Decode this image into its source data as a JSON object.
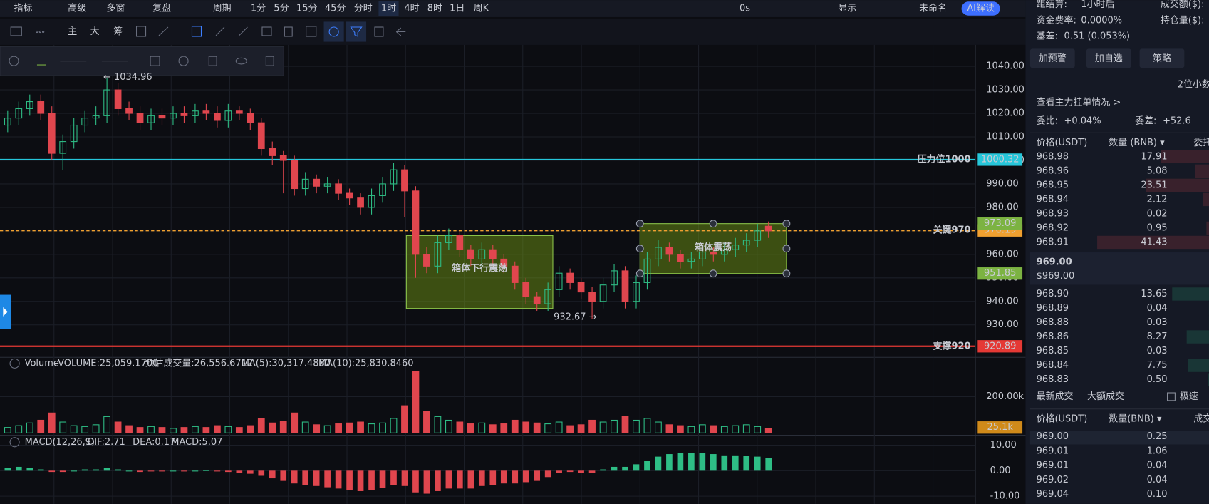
{
  "toolbar": {
    "items": [
      "指标",
      "高级",
      "多窗",
      "复盘",
      "周期",
      "1分",
      "5分",
      "15分",
      "45分",
      "分时",
      "1时",
      "4时",
      "8时",
      "1日",
      "周K"
    ],
    "active": "1时",
    "right": [
      "0s",
      "显示",
      "未命名",
      "AI解读"
    ]
  },
  "toolbar2": {
    "items": [
      "主",
      "大",
      "筹"
    ]
  },
  "price_pane": {
    "ylim": [
      916.2,
      1048.5
    ],
    "yticks": [
      {
        "value": 1040,
        "label": "1040.00"
      },
      {
        "value": 1030,
        "label": "1030.00"
      },
      {
        "value": 1020,
        "label": "1020.00"
      },
      {
        "value": 1010,
        "label": "1010.00"
      },
      {
        "value": 1000,
        "label": "1000.00"
      },
      {
        "value": 990,
        "label": "990.00"
      },
      {
        "value": 980,
        "label": "980.00"
      },
      {
        "value": 970,
        "label": "970.00"
      },
      {
        "value": 960,
        "label": "960.00"
      },
      {
        "value": 950,
        "label": "950.00"
      },
      {
        "value": 940,
        "label": "940.00"
      },
      {
        "value": 930,
        "label": "930.00"
      }
    ],
    "up_color": "#2ebd85",
    "down_color": "#e0464e",
    "candles": [
      [
        1015,
        1021,
        1012,
        1018
      ],
      [
        1018,
        1025,
        1015,
        1022
      ],
      [
        1022,
        1028,
        1019,
        1025
      ],
      [
        1025,
        1028,
        1017,
        1020
      ],
      [
        1020,
        1023,
        1000,
        1003
      ],
      [
        1003,
        1011,
        996,
        1008
      ],
      [
        1008,
        1018,
        1005,
        1015
      ],
      [
        1015,
        1021,
        1012,
        1018
      ],
      [
        1018,
        1023,
        1015,
        1019
      ],
      [
        1019,
        1034.96,
        1016,
        1030
      ],
      [
        1030,
        1033,
        1019,
        1022
      ],
      [
        1022,
        1025,
        1017,
        1020
      ],
      [
        1020,
        1023,
        1013,
        1016
      ],
      [
        1016,
        1022,
        1013,
        1019
      ],
      [
        1019,
        1022,
        1015,
        1018
      ],
      [
        1018,
        1023,
        1015,
        1020
      ],
      [
        1020,
        1023,
        1016,
        1019
      ],
      [
        1019,
        1024,
        1016,
        1021
      ],
      [
        1021,
        1024,
        1017,
        1020
      ],
      [
        1020,
        1023,
        1014,
        1017
      ],
      [
        1017,
        1024,
        1014,
        1021
      ],
      [
        1021,
        1023,
        1017,
        1020
      ],
      [
        1020,
        1022,
        1013,
        1016
      ],
      [
        1016,
        1018,
        1002,
        1005
      ],
      [
        1005,
        1008,
        998,
        1002
      ],
      [
        1002,
        1004,
        986,
        1000
      ],
      [
        1000,
        1002,
        985,
        988
      ],
      [
        988,
        995,
        985,
        992
      ],
      [
        992,
        994,
        986,
        989
      ],
      [
        989,
        993,
        986,
        990
      ],
      [
        990,
        992,
        983,
        986
      ],
      [
        986,
        988,
        981,
        984
      ],
      [
        984,
        986,
        977,
        980
      ],
      [
        980,
        988,
        977,
        985
      ],
      [
        985,
        993,
        982,
        990
      ],
      [
        990,
        999,
        987,
        996
      ],
      [
        996,
        998,
        976,
        987
      ],
      [
        987,
        989,
        950,
        960
      ],
      [
        960,
        963,
        952,
        955
      ],
      [
        955,
        968,
        952,
        965
      ],
      [
        965,
        971,
        962,
        968
      ],
      [
        968,
        970,
        959,
        962
      ],
      [
        962,
        964,
        955,
        958
      ],
      [
        958,
        965,
        955,
        962
      ],
      [
        962,
        964,
        955,
        958
      ],
      [
        958,
        960,
        952,
        955
      ],
      [
        955,
        957,
        945,
        948
      ],
      [
        948,
        950,
        939,
        942
      ],
      [
        942,
        944,
        936,
        939
      ],
      [
        939,
        948,
        936,
        945
      ],
      [
        945,
        955,
        942,
        952
      ],
      [
        952,
        954,
        945,
        948
      ],
      [
        948,
        950,
        941,
        944
      ],
      [
        944,
        946,
        932.67,
        940
      ],
      [
        940,
        950,
        937,
        947
      ],
      [
        947,
        956,
        944,
        953
      ],
      [
        953,
        955,
        937,
        940
      ],
      [
        940,
        951,
        937,
        948
      ],
      [
        948,
        961,
        945,
        958
      ],
      [
        958,
        966,
        955,
        963
      ],
      [
        963,
        965,
        957,
        960
      ],
      [
        960,
        962,
        954,
        957
      ],
      [
        957,
        961,
        954,
        958
      ],
      [
        958,
        964,
        955,
        961
      ],
      [
        961,
        963,
        957,
        960
      ],
      [
        960,
        965,
        957,
        962
      ],
      [
        962,
        967,
        959,
        964
      ],
      [
        964,
        969,
        961,
        966
      ],
      [
        966,
        973,
        963,
        970
      ],
      [
        972,
        974,
        967,
        970
      ]
    ],
    "levels": [
      {
        "label": "压力位1000",
        "value": 1000.32,
        "color": "#26c6da"
      },
      {
        "label": "关键970",
        "value": 970.19,
        "color": "#f0a030"
      },
      {
        "label": "支撑920",
        "value": 920.89,
        "color": "#e53935"
      }
    ],
    "box_range": {
      "label": "箱体震荡",
      "top": 973.09,
      "bottom": 951.85
    },
    "box_down": {
      "label": "箱体下行震荡"
    },
    "high_note": "← 1034.96",
    "low_note": "932.67 →"
  },
  "volume_pane": {
    "labels": [
      "Volume",
      "VOLUME:25,059.1700",
      "预估成交量:26,556.6712",
      "MA(5):30,317.4880",
      "MA(10):25,830.8460"
    ],
    "ylim": [
      0,
      417
    ],
    "yticks": [
      {
        "value": 200,
        "label": "200.00k"
      }
    ],
    "tag": "25.1k",
    "values": [
      30,
      40,
      55,
      70,
      110,
      60,
      40,
      35,
      45,
      90,
      60,
      40,
      30,
      35,
      30,
      25,
      30,
      35,
      30,
      40,
      35,
      30,
      40,
      80,
      55,
      65,
      110,
      60,
      45,
      40,
      50,
      55,
      60,
      50,
      55,
      80,
      150,
      340,
      120,
      90,
      70,
      60,
      50,
      55,
      45,
      50,
      70,
      60,
      55,
      50,
      60,
      40,
      45,
      70,
      60,
      70,
      90,
      70,
      80,
      60,
      45,
      40,
      35,
      45,
      40,
      35,
      40,
      45,
      35,
      25
    ]
  },
  "macd_pane": {
    "labels": [
      "MACD(12,26,9)",
      "DIF:2.71",
      "DEA:0.17",
      "MACD:5.07"
    ],
    "ylim": [
      -13,
      13.6
    ],
    "yticks": [
      {
        "value": 10,
        "label": "10.00"
      },
      {
        "value": 0,
        "label": "0.00"
      },
      {
        "value": -10,
        "label": "-10.00"
      }
    ],
    "values": [
      1,
      1.5,
      1,
      0.5,
      -0.5,
      -0.5,
      0,
      0.5,
      0.5,
      1,
      0.5,
      0,
      -0.5,
      -0.3,
      -0.2,
      0,
      -0.3,
      0,
      0.2,
      -0.2,
      -0.5,
      -0.8,
      -1.2,
      -2,
      -3,
      -4,
      -5,
      -5.5,
      -6,
      -6.5,
      -7,
      -7.5,
      -8,
      -7.5,
      -6.8,
      -5.5,
      -6,
      -8.5,
      -9,
      -8,
      -7,
      -7,
      -7,
      -6,
      -5.5,
      -5,
      -5,
      -4.5,
      -4,
      -2.5,
      -1,
      -0.5,
      -0.8,
      -1,
      0.5,
      1.5,
      1.5,
      2.5,
      4,
      5.5,
      6.5,
      7,
      7,
      6.8,
      6.5,
      6,
      6,
      5.8,
      5.5,
      5.07
    ]
  },
  "side": {
    "info": [
      [
        "距结算:",
        "1小时后",
        "成交额($):"
      ],
      [
        "资金费率:",
        "0.0000%",
        "持仓量($):"
      ],
      [
        "基差:",
        "0.51 (0.053%)"
      ]
    ],
    "buttons": [
      "加预警",
      "加自选",
      "策略"
    ],
    "decimals": "2位小数",
    "main_orders": "查看主力挂单情况 >",
    "ratio": [
      "委比:",
      "+0.04%",
      "委差:",
      "+52.6"
    ],
    "book_header": [
      "价格(USDT)",
      "数量 (BNB) ▾",
      "委托"
    ],
    "asks": [
      [
        "968.98",
        "17.91"
      ],
      [
        "968.96",
        "5.08"
      ],
      [
        "968.95",
        "23.51"
      ],
      [
        "968.94",
        "2.12"
      ],
      [
        "968.93",
        "0.02"
      ],
      [
        "968.92",
        "0.95"
      ],
      [
        "968.91",
        "41.43"
      ]
    ],
    "last": "969.00",
    "last_usd": "$969.00",
    "bids": [
      [
        "968.90",
        "13.65"
      ],
      [
        "968.89",
        "0.04"
      ],
      [
        "968.88",
        "0.03"
      ],
      [
        "968.86",
        "8.27"
      ],
      [
        "968.85",
        "0.03"
      ],
      [
        "968.84",
        "7.75"
      ],
      [
        "968.83",
        "0.50"
      ]
    ],
    "tabs": [
      "最新成交",
      "大额成交",
      "极速"
    ],
    "trade_header": [
      "价格(USDT)",
      "数量(BNB) ▾",
      "成交"
    ],
    "trades": [
      [
        "969.00",
        "0.25",
        "#e0464e"
      ],
      [
        "969.01",
        "1.06",
        "#2ebd85"
      ],
      [
        "969.01",
        "0.04",
        "#e0464e"
      ],
      [
        "969.02",
        "0.04",
        "#e0464e"
      ],
      [
        "969.04",
        "0.10",
        "#2ebd85"
      ]
    ]
  }
}
